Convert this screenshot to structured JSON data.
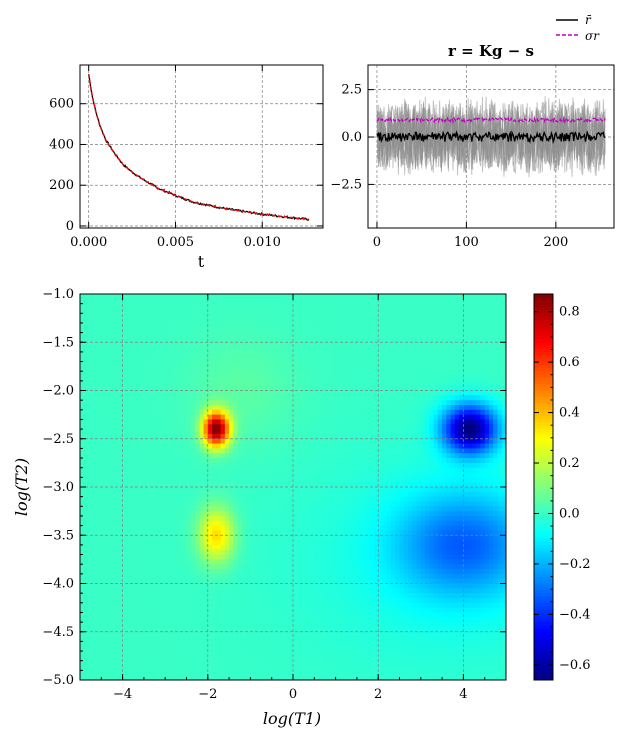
{
  "chart_data": [
    {
      "type": "line",
      "panel": "decay",
      "xlabel": "t",
      "ylabel": "",
      "xlim": [
        -0.0005,
        0.0135
      ],
      "ylim": [
        -10,
        790
      ],
      "xticks": [
        "0.000",
        "0.005",
        "0.010"
      ],
      "yticks": [
        "0",
        "200",
        "400",
        "600"
      ],
      "grid": true,
      "series": [
        {
          "style": "black noisy data",
          "x": [
            0.0,
            0.0002,
            0.0004,
            0.0006,
            0.0008,
            0.001,
            0.0015,
            0.002,
            0.0025,
            0.003,
            0.004,
            0.005,
            0.006,
            0.007,
            0.008,
            0.009,
            0.01,
            0.011,
            0.012,
            0.0127
          ],
          "y": [
            745,
            640,
            565,
            505,
            460,
            420,
            355,
            300,
            265,
            235,
            185,
            150,
            118,
            100,
            83,
            70,
            58,
            48,
            38,
            32
          ]
        },
        {
          "style": "red dashed fit",
          "x": [
            0.0,
            0.0002,
            0.0004,
            0.0006,
            0.0008,
            0.001,
            0.0015,
            0.002,
            0.0025,
            0.003,
            0.004,
            0.005,
            0.006,
            0.007,
            0.008,
            0.009,
            0.01,
            0.011,
            0.012,
            0.0127
          ],
          "y": [
            745,
            640,
            565,
            505,
            460,
            420,
            355,
            300,
            265,
            235,
            185,
            150,
            118,
            100,
            83,
            70,
            58,
            48,
            38,
            32
          ]
        }
      ]
    },
    {
      "type": "line",
      "panel": "residuals",
      "title": "r = Kg − s",
      "xlim": [
        -10,
        265
      ],
      "ylim": [
        -4.8,
        3.8
      ],
      "xticks": [
        "0",
        "100",
        "200"
      ],
      "yticks": [
        "2.5",
        "0.0",
        "−2.5"
      ],
      "grid": true,
      "legend_position": "top-right (above panel)",
      "series": [
        {
          "name": "r̄",
          "style": "black solid",
          "mean": 0.0,
          "amplitude": 0.25,
          "x_range": [
            0,
            255
          ]
        },
        {
          "name": "σr",
          "style": "magenta dashed",
          "mean": 0.9,
          "amplitude": 0.1,
          "x_range": [
            0,
            255
          ]
        },
        {
          "style": "gray bands",
          "spread": 2.2,
          "x_range": [
            0,
            255
          ]
        }
      ]
    },
    {
      "type": "heatmap",
      "panel": "distribution",
      "xlabel": "log(T1)",
      "ylabel": "log(T2)",
      "xlim": [
        -5,
        5
      ],
      "ylim": [
        -5,
        -1
      ],
      "xticks": [
        "−4",
        "−2",
        "0",
        "2",
        "4"
      ],
      "yticks": [
        "−1.0",
        "−1.5",
        "−2.0",
        "−2.5",
        "−3.0",
        "−3.5",
        "−4.0",
        "−4.5",
        "−5.0"
      ],
      "colormap": "jet",
      "colorbar": {
        "min": -0.66,
        "max": 0.87,
        "ticks": [
          "0.8",
          "0.6",
          "0.4",
          "0.2",
          "0.0",
          "−0.2",
          "−0.4",
          "−0.6"
        ]
      },
      "background_value": 0.0,
      "features": [
        {
          "x": -1.8,
          "y": -2.4,
          "sx": 0.22,
          "sy": 0.13,
          "value": 0.87
        },
        {
          "x": -1.8,
          "y": -3.5,
          "sx": 0.3,
          "sy": 0.2,
          "value": 0.35
        },
        {
          "x": 4.15,
          "y": -2.4,
          "sx": 0.45,
          "sy": 0.18,
          "value": -0.66
        },
        {
          "x": 4.0,
          "y": -3.6,
          "sx": 1.1,
          "sy": 0.38,
          "value": -0.28
        }
      ]
    }
  ]
}
